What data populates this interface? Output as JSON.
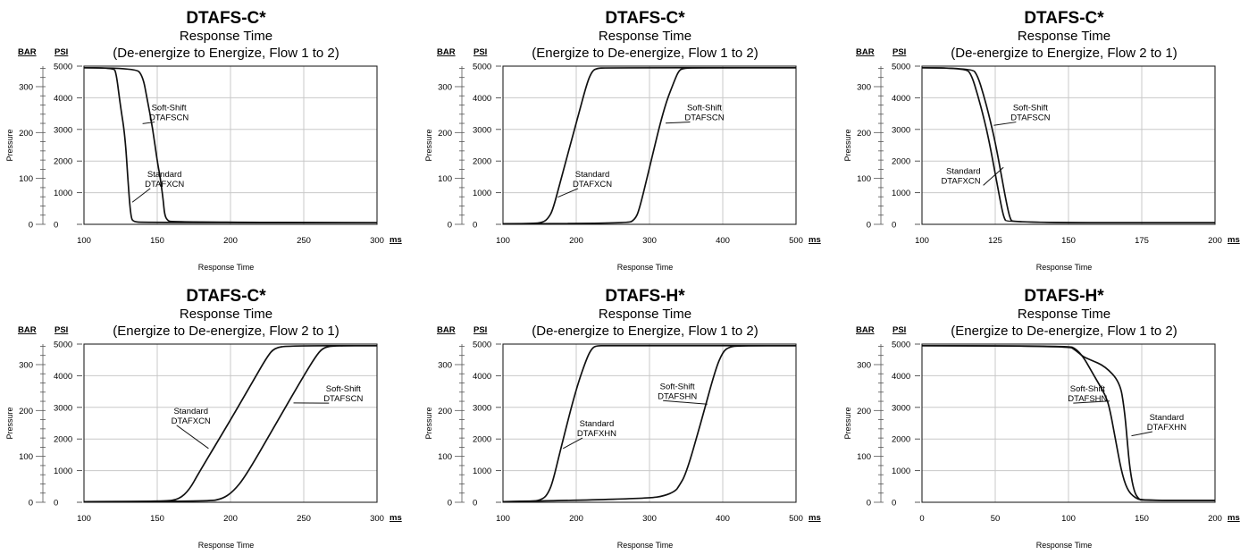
{
  "labels": {
    "bar": "BAR",
    "psi": "PSI",
    "ms": "ms"
  },
  "chart_data": [
    {
      "type": "line",
      "title": "DTAFS-C*",
      "subtitle": "Response Time",
      "condition": "(De-energize to Energize, Flow 1 to 2)",
      "xlabel": "Response Time",
      "ylabel": "Pressure",
      "xlim": [
        100,
        300
      ],
      "xticks": [
        100,
        150,
        200,
        250,
        300
      ],
      "ylim": [
        0,
        5000
      ],
      "yticks_psi": [
        0,
        1000,
        2000,
        3000,
        4000,
        5000
      ],
      "yticks_bar": [
        0,
        100,
        200,
        300
      ],
      "grid": true,
      "series": [
        {
          "name": "Standard DTAFXCN",
          "x": [
            100,
            120,
            122,
            125,
            128,
            130,
            132,
            134,
            140,
            300
          ],
          "y": [
            4950,
            4950,
            4800,
            3700,
            2800,
            1400,
            200,
            80,
            60,
            50
          ]
        },
        {
          "name": "Soft-Shift DTAFSCN",
          "x": [
            100,
            135,
            140,
            143,
            147,
            150,
            152,
            154,
            155,
            157,
            160,
            300
          ],
          "y": [
            4950,
            4950,
            4700,
            4000,
            3000,
            2000,
            1500,
            800,
            300,
            120,
            70,
            50
          ]
        }
      ],
      "annotations": [
        {
          "lines": [
            "Soft-Shift",
            "DTAFSCN"
          ],
          "at": [
            140,
            3180
          ],
          "text": [
            158,
            3600
          ],
          "anchor": "middle"
        },
        {
          "lines": [
            "Standard",
            "DTAFXCN"
          ],
          "at": [
            133,
            700
          ],
          "text": [
            155,
            1500
          ],
          "anchor": "middle"
        }
      ]
    },
    {
      "type": "line",
      "title": "DTAFS-C*",
      "subtitle": "Response Time",
      "condition": "(Energize to De-energize, Flow 1 to 2)",
      "xlabel": "Response Time",
      "ylabel": "Pressure",
      "xlim": [
        100,
        500
      ],
      "xticks": [
        100,
        200,
        300,
        400,
        500
      ],
      "ylim": [
        0,
        5000
      ],
      "yticks_psi": [
        0,
        1000,
        2000,
        3000,
        4000,
        5000
      ],
      "yticks_bar": [
        0,
        100,
        200,
        300
      ],
      "grid": true,
      "series": [
        {
          "name": "Standard DTAFXCN",
          "x": [
            100,
            140,
            155,
            162,
            168,
            180,
            200,
            215,
            222,
            228,
            240,
            500
          ],
          "y": [
            20,
            20,
            60,
            200,
            450,
            1500,
            3200,
            4500,
            4850,
            4930,
            4950,
            4950
          ]
        },
        {
          "name": "Soft-Shift DTAFSCN",
          "x": [
            100,
            270,
            280,
            286,
            300,
            320,
            335,
            340,
            345,
            360,
            500
          ],
          "y": [
            20,
            20,
            150,
            450,
            1800,
            3700,
            4600,
            4850,
            4930,
            4950,
            4950
          ]
        }
      ],
      "annotations": [
        {
          "lines": [
            "Standard",
            "DTAFXCN"
          ],
          "at": [
            175,
            860
          ],
          "text": [
            222,
            1500
          ],
          "anchor": "middle"
        },
        {
          "lines": [
            "Soft-Shift",
            "DTAFSCN"
          ],
          "at": [
            322,
            3200
          ],
          "text": [
            375,
            3600
          ],
          "anchor": "middle"
        }
      ]
    },
    {
      "type": "line",
      "title": "DTAFS-C*",
      "subtitle": "Response Time",
      "condition": "(De-energize to Energize, Flow 2 to 1)",
      "xlabel": "Response Time",
      "ylabel": "Pressure",
      "xlim": [
        100,
        200
      ],
      "xticks": [
        100,
        125,
        150,
        175,
        200
      ],
      "ylim": [
        0,
        5000
      ],
      "yticks_psi": [
        0,
        1000,
        2000,
        3000,
        4000,
        5000
      ],
      "yticks_bar": [
        0,
        100,
        200,
        300
      ],
      "grid": true,
      "series": [
        {
          "name": "Standard DTAFXCN",
          "x": [
            100,
            115,
            117,
            119,
            121,
            123,
            125,
            127,
            128,
            129,
            200
          ],
          "y": [
            4950,
            4950,
            4700,
            4100,
            3400,
            2600,
            1600,
            600,
            200,
            50,
            50
          ]
        },
        {
          "name": "Soft-Shift DTAFSCN",
          "x": [
            100,
            117,
            119,
            121,
            123,
            125,
            127,
            129,
            130,
            131,
            200
          ],
          "y": [
            4950,
            4950,
            4700,
            4100,
            3400,
            2600,
            1600,
            600,
            200,
            50,
            50
          ]
        }
      ],
      "annotations": [
        {
          "lines": [
            "Soft-Shift",
            "DTAFSCN"
          ],
          "at": [
            124.5,
            3130
          ],
          "text": [
            137,
            3600
          ],
          "anchor": "middle"
        },
        {
          "lines": [
            "Standard",
            "DTAFXCN"
          ],
          "at": [
            127.8,
            1800
          ],
          "text": [
            120,
            1600
          ],
          "anchor": "end"
        }
      ]
    },
    {
      "type": "line",
      "title": "DTAFS-C*",
      "subtitle": "Response Time",
      "condition": "(Energize to De-energize, Flow 2 to 1)",
      "xlabel": "Response Time",
      "ylabel": "Pressure",
      "xlim": [
        100,
        300
      ],
      "xticks": [
        100,
        150,
        200,
        250,
        300
      ],
      "ylim": [
        0,
        5000
      ],
      "yticks_psi": [
        0,
        1000,
        2000,
        3000,
        4000,
        5000
      ],
      "yticks_bar": [
        0,
        100,
        200,
        300
      ],
      "grid": true,
      "series": [
        {
          "name": "Standard DTAFXCN",
          "x": [
            100,
            155,
            165,
            172,
            178,
            200,
            215,
            225,
            230,
            240,
            300
          ],
          "y": [
            20,
            20,
            100,
            400,
            900,
            2600,
            3800,
            4600,
            4880,
            4950,
            4950
          ]
        },
        {
          "name": "Soft-Shift DTAFSCN",
          "x": [
            100,
            185,
            195,
            202,
            210,
            230,
            250,
            258,
            263,
            270,
            300
          ],
          "y": [
            20,
            20,
            120,
            350,
            800,
            2400,
            4000,
            4600,
            4880,
            4950,
            4950
          ]
        }
      ],
      "annotations": [
        {
          "lines": [
            "Standard",
            "DTAFXCN"
          ],
          "at": [
            185,
            1700
          ],
          "text": [
            173,
            2800
          ],
          "anchor": "middle"
        },
        {
          "lines": [
            "Soft-Shift",
            "DTAFSCN"
          ],
          "at": [
            243,
            3140
          ],
          "text": [
            277,
            3500
          ],
          "anchor": "middle"
        }
      ]
    },
    {
      "type": "line",
      "title": "DTAFS-H*",
      "subtitle": "Response Time",
      "condition": "(De-energize to Energize, Flow 1 to 2)",
      "xlabel": "Response Time",
      "ylabel": "Pressure",
      "xlim": [
        100,
        500
      ],
      "xticks": [
        100,
        200,
        300,
        400,
        500
      ],
      "ylim": [
        0,
        5000
      ],
      "yticks_psi": [
        0,
        1000,
        2000,
        3000,
        4000,
        5000
      ],
      "yticks_bar": [
        0,
        100,
        200,
        300
      ],
      "grid": true,
      "series": [
        {
          "name": "Standard DTAFXHN",
          "x": [
            100,
            140,
            155,
            162,
            168,
            180,
            200,
            215,
            222,
            228,
            240,
            500
          ],
          "y": [
            20,
            20,
            100,
            300,
            650,
            1800,
            3600,
            4600,
            4880,
            4950,
            4950,
            4950
          ]
        },
        {
          "name": "Soft-Shift DTAFSHN",
          "x": [
            100,
            200,
            300,
            320,
            335,
            340,
            350,
            370,
            390,
            400,
            408,
            420,
            500
          ],
          "y": [
            20,
            60,
            130,
            200,
            350,
            500,
            900,
            2500,
            4200,
            4750,
            4900,
            4950,
            4950
          ]
        }
      ],
      "annotations": [
        {
          "lines": [
            "Standard",
            "DTAFXHN"
          ],
          "at": [
            182,
            1700
          ],
          "text": [
            228,
            2400
          ],
          "anchor": "middle"
        },
        {
          "lines": [
            "Soft-Shift",
            "DTAFSHN"
          ],
          "at": [
            379,
            3100
          ],
          "text": [
            338,
            3580
          ],
          "anchor": "middle"
        }
      ]
    },
    {
      "type": "line",
      "title": "DTAFS-H*",
      "subtitle": "Response Time",
      "condition": "(Energize to De-energize, Flow 1 to 2)",
      "xlabel": "Response Time",
      "ylabel": "Pressure",
      "xlim": [
        0,
        200
      ],
      "xticks": [
        0,
        50,
        100,
        150,
        200
      ],
      "ylim": [
        0,
        5000
      ],
      "yticks_psi": [
        0,
        1000,
        2000,
        3000,
        4000,
        5000
      ],
      "yticks_bar": [
        0,
        100,
        200,
        300
      ],
      "grid": true,
      "series": [
        {
          "name": "Soft-Shift DTAFSHN",
          "x": [
            0,
            100,
            105,
            110,
            115,
            120,
            125,
            128,
            132,
            136,
            140,
            145,
            150,
            200
          ],
          "y": [
            4950,
            4950,
            4850,
            4600,
            4200,
            3800,
            3400,
            3000,
            2000,
            1000,
            400,
            150,
            60,
            60
          ]
        },
        {
          "name": "Standard DTAFXHN",
          "x": [
            0,
            100,
            105,
            110,
            115,
            125,
            135,
            138,
            140,
            142,
            145,
            148,
            150,
            200
          ],
          "y": [
            4950,
            4950,
            4800,
            4600,
            4500,
            4300,
            3800,
            3000,
            2000,
            1000,
            300,
            100,
            60,
            60
          ]
        }
      ],
      "annotations": [
        {
          "lines": [
            "Soft-Shift",
            "DTAFSHN"
          ],
          "at": [
            128,
            3200
          ],
          "text": [
            113,
            3500
          ],
          "anchor": "middle"
        },
        {
          "lines": [
            "Standard",
            "DTAFXHN"
          ],
          "at": [
            143,
            2100
          ],
          "text": [
            167,
            2600
          ],
          "anchor": "middle"
        }
      ]
    }
  ]
}
